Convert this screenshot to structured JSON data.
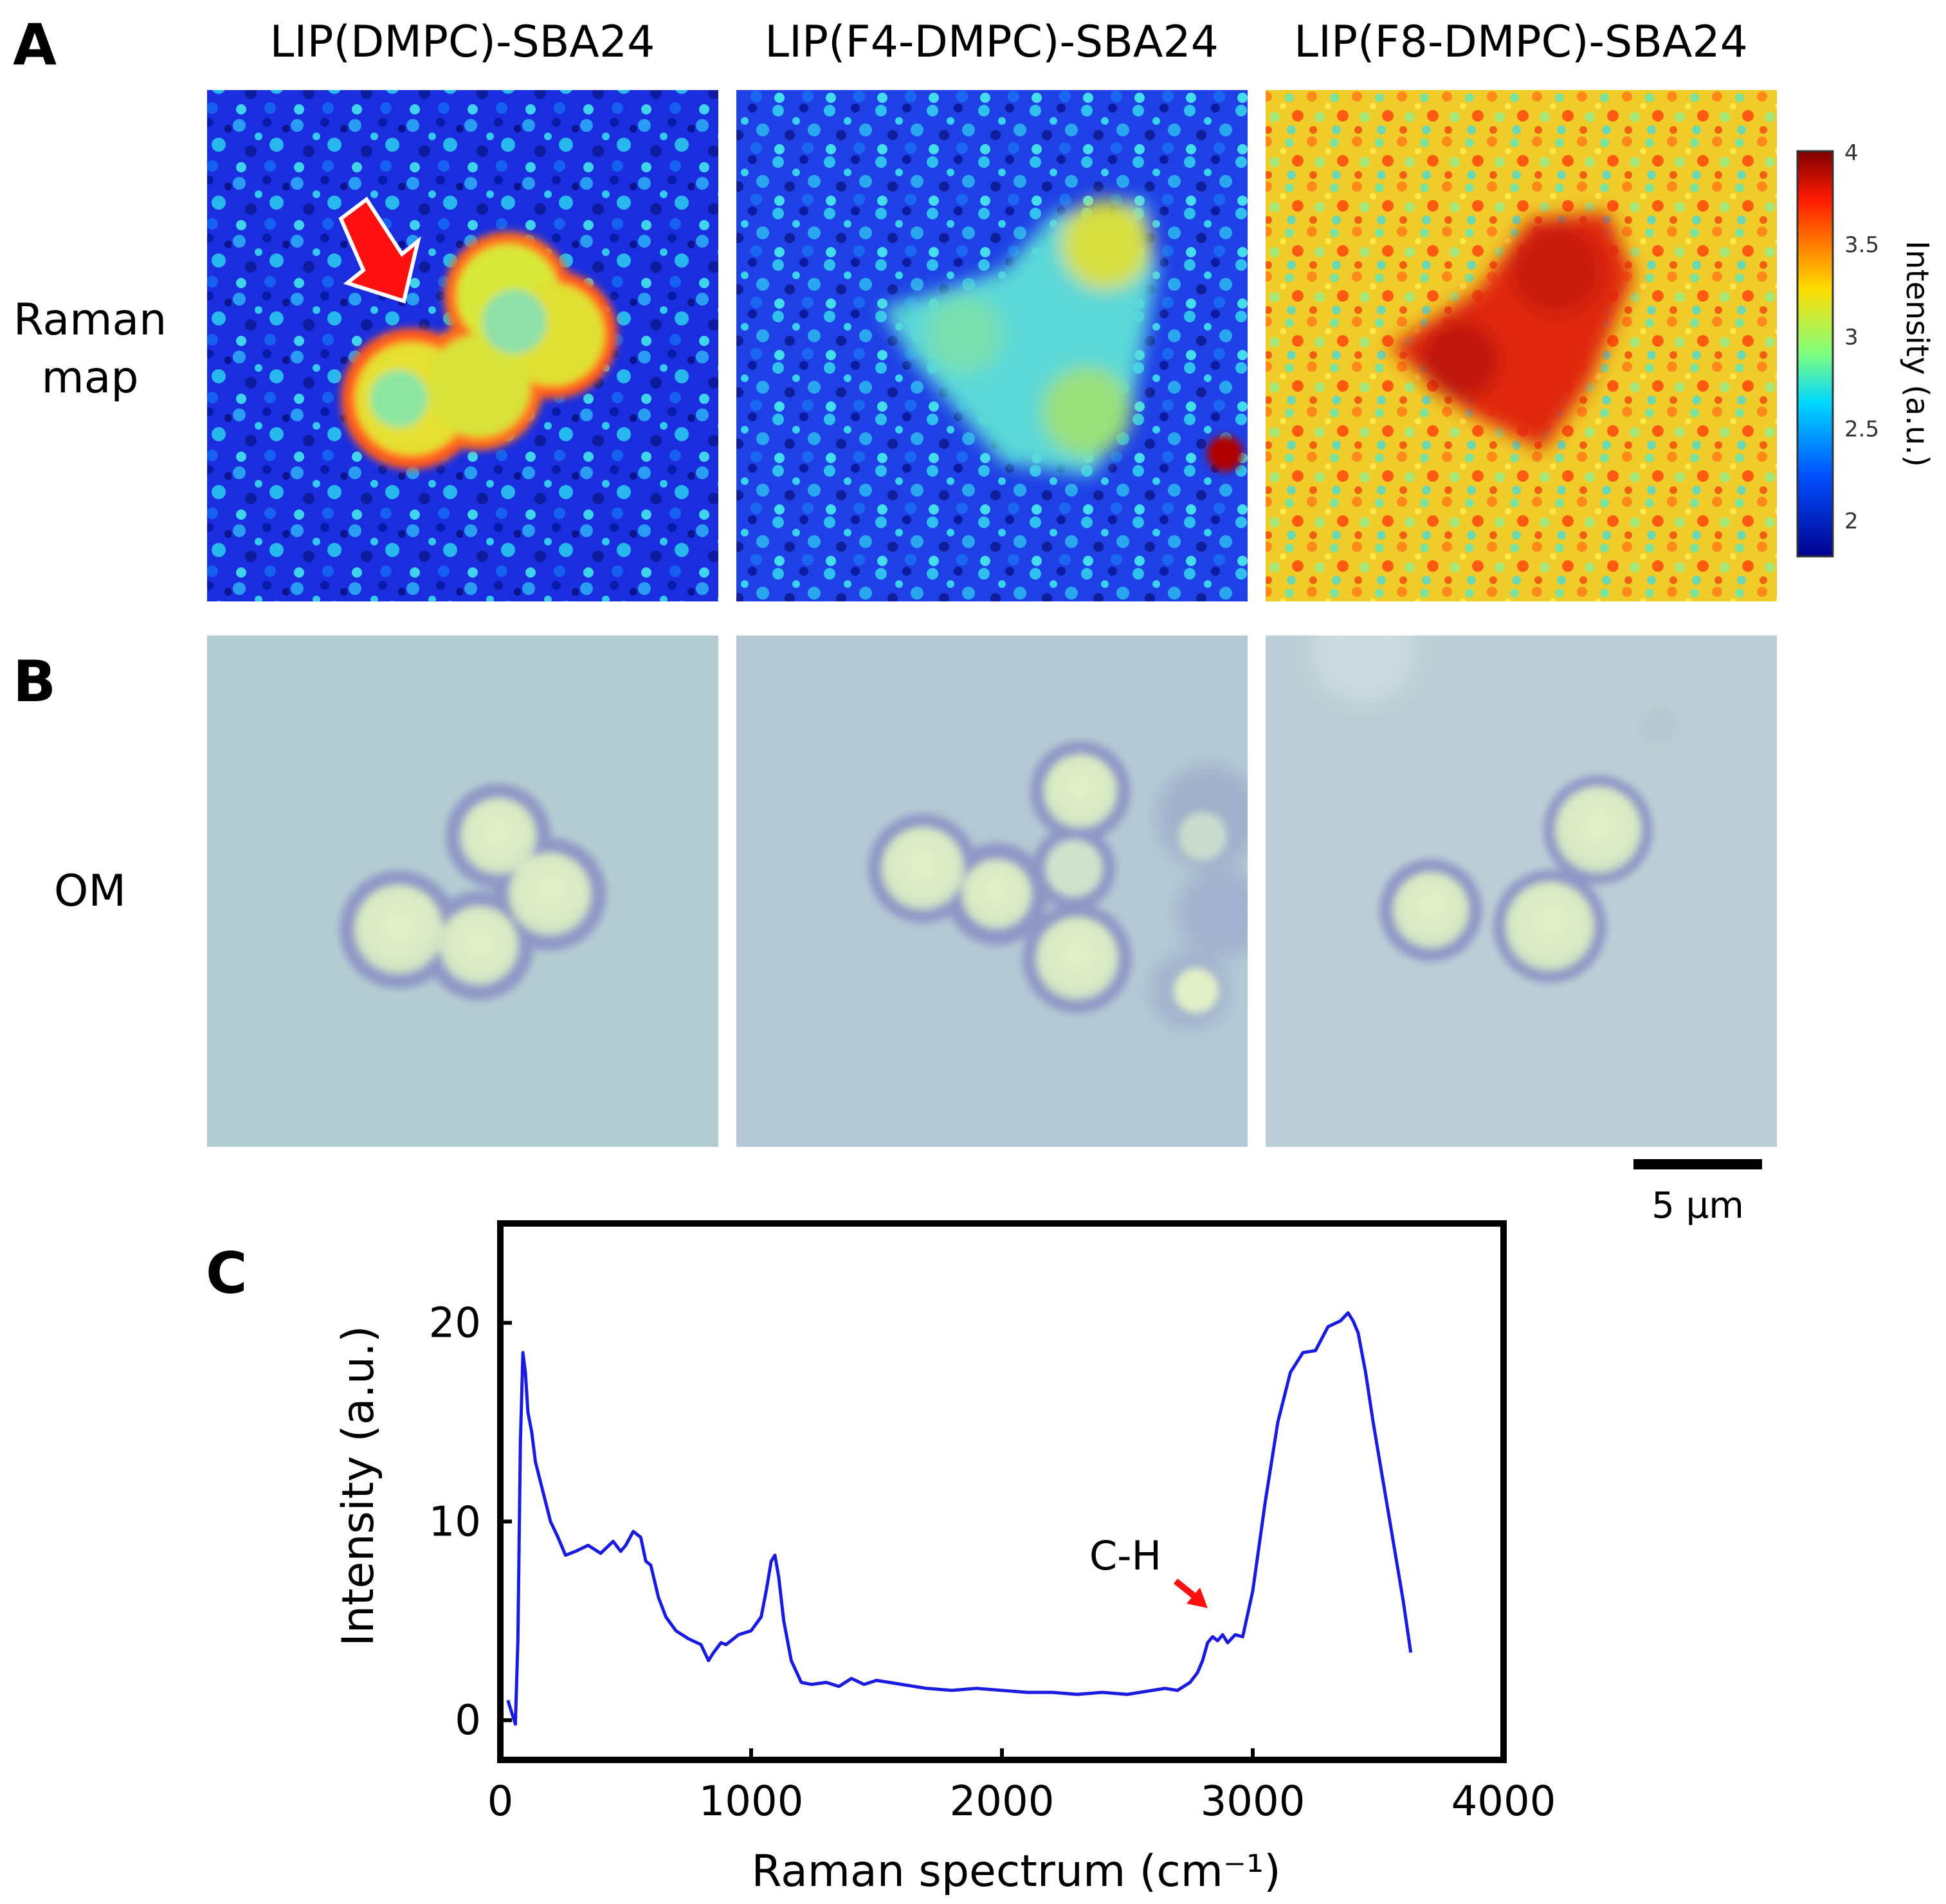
{
  "panel_a": {
    "letter": "A",
    "column_titles": [
      "LIP(DMPC)-SBA24",
      "LIP(F4-DMPC)-SBA24",
      "LIP(F8-DMPC)-SBA24"
    ],
    "row_label_line1": "Raman",
    "row_label_line2": "map",
    "colorbar": {
      "label": "Intensity (a.u.)",
      "min": 1.8,
      "max": 4,
      "ticks": [
        "4",
        "3.5",
        "3",
        "2.5",
        "2"
      ],
      "colors": [
        "#7f0000",
        "#ff2000",
        "#ffdd00",
        "#7fff7f",
        "#00d8ff",
        "#0060ff",
        "#00008f"
      ]
    },
    "marker": "red arrow"
  },
  "panel_b": {
    "letter": "B",
    "row_label": "OM",
    "scale_bar_label": "5 μm"
  },
  "panel_c": {
    "letter": "C",
    "annotation": "C-H",
    "line_color": "#1a1ae0"
  },
  "chart_data": {
    "type": "line",
    "title": "",
    "xlabel": "Raman spectrum (cm⁻¹)",
    "ylabel": "Intensity (a.u.)",
    "xlim": [
      0,
      4000
    ],
    "ylim": [
      -2,
      25
    ],
    "xticks": [
      0,
      1000,
      2000,
      3000,
      4000
    ],
    "yticks": [
      0,
      10,
      20
    ],
    "annotations": [
      {
        "text": "C-H",
        "x": 2850,
        "y": 4.2
      }
    ],
    "series": [
      {
        "name": "Raman spectrum",
        "x": [
          30,
          45,
          60,
          70,
          80,
          90,
          100,
          110,
          125,
          140,
          160,
          180,
          200,
          230,
          260,
          300,
          350,
          400,
          450,
          480,
          500,
          530,
          560,
          580,
          600,
          630,
          660,
          700,
          750,
          800,
          830,
          850,
          880,
          900,
          950,
          1000,
          1040,
          1060,
          1080,
          1095,
          1110,
          1130,
          1160,
          1200,
          1240,
          1300,
          1350,
          1400,
          1450,
          1500,
          1600,
          1700,
          1800,
          1900,
          2000,
          2100,
          2200,
          2300,
          2400,
          2500,
          2600,
          2650,
          2700,
          2750,
          2780,
          2800,
          2820,
          2840,
          2860,
          2880,
          2900,
          2930,
          2960,
          3000,
          3050,
          3100,
          3150,
          3200,
          3250,
          3300,
          3350,
          3380,
          3400,
          3420,
          3450,
          3480,
          3520,
          3560,
          3600,
          3630
        ],
        "y": [
          1.0,
          0.4,
          -0.2,
          4.0,
          14.0,
          18.5,
          17.5,
          15.5,
          14.5,
          13.0,
          12.0,
          11.0,
          10.0,
          9.2,
          8.3,
          8.5,
          8.8,
          8.4,
          9.0,
          8.5,
          8.8,
          9.5,
          9.2,
          8.0,
          7.8,
          6.2,
          5.2,
          4.5,
          4.1,
          3.8,
          3.0,
          3.4,
          3.9,
          3.8,
          4.3,
          4.5,
          5.2,
          6.5,
          8.0,
          8.3,
          7.2,
          5.0,
          3.0,
          1.9,
          1.8,
          1.9,
          1.7,
          2.1,
          1.8,
          2.0,
          1.8,
          1.6,
          1.5,
          1.6,
          1.5,
          1.4,
          1.4,
          1.3,
          1.4,
          1.3,
          1.5,
          1.6,
          1.5,
          1.9,
          2.4,
          3.0,
          3.9,
          4.2,
          4.0,
          4.3,
          3.9,
          4.3,
          4.2,
          6.5,
          11.0,
          15.0,
          17.5,
          18.5,
          18.6,
          19.8,
          20.1,
          20.5,
          20.1,
          19.5,
          17.5,
          15.0,
          12.0,
          9.0,
          6.0,
          3.4
        ]
      }
    ]
  }
}
